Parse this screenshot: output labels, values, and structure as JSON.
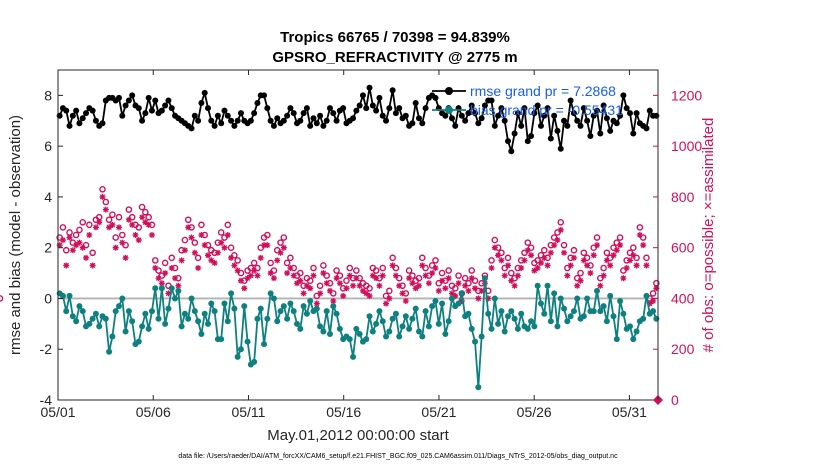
{
  "chart_data": {
    "type": "line",
    "title": "Tropics 66765 / 70398 = 94.839%",
    "subtitle": "GPSRO_REFRACTIVITY @ 2775 m",
    "xlabel": "May.01,2012 00:00:00 start",
    "ylabel": "rmse and bias (model - observation)",
    "ylabel_right": "# of obs: o=possible; ×=assimilated",
    "xlim": [
      0,
      31.5
    ],
    "ylim": [
      -4,
      9
    ],
    "ylim_right": [
      0,
      1300
    ],
    "xtick_values": [
      0,
      5,
      10,
      15,
      20,
      25,
      30
    ],
    "xtick_labels": [
      "05/01",
      "05/06",
      "05/11",
      "05/16",
      "05/21",
      "05/26",
      "05/31"
    ],
    "ytick_labels": [
      "-4",
      "-2",
      "0",
      "2",
      "4",
      "6",
      "8"
    ],
    "ytick_labels_right": [
      "0",
      "200",
      "400",
      "600",
      "800",
      "1000",
      "1200"
    ],
    "legend": [
      "rmse grand pr = 7.2868",
      "bias grand pr = -0.55431"
    ],
    "colors": {
      "rmse": "#000000",
      "bias": "#0f8080",
      "obs": "#d0105a",
      "legend_text": "#1a5ee6",
      "zero_line": "#b3b3b3"
    },
    "footnote": "data file: /Users/raeder/DAI/ATM_forcXX/CAM6_setup/f.e21.FHIST_BGC.f09_025.CAM6assim.011/Diags_NTrS_2012-05/obs_diag_output.nc",
    "series": [
      {
        "name": "rmse",
        "values": [
          7.2,
          7.5,
          7.4,
          6.8,
          7.2,
          7.4,
          6.9,
          7.1,
          7.3,
          7.5,
          7.4,
          7.0,
          6.8,
          6.9,
          7.8,
          7.9,
          7.9,
          7.8,
          7.9,
          7.2,
          7.6,
          7.8,
          8.0,
          7.6,
          7.5,
          7.0,
          7.3,
          7.9,
          7.4,
          7.8,
          7.3,
          7.4,
          7.6,
          7.8,
          7.5,
          7.2,
          7.1,
          7.0,
          6.9,
          6.8,
          6.7,
          7.2,
          7.0,
          7.7,
          8.1,
          7.5,
          7.0,
          6.8,
          7.2,
          6.9,
          7.4,
          7.2,
          7.0,
          6.8,
          7.0,
          7.3,
          7.0,
          6.9,
          7.0,
          7.3,
          7.7,
          8.0,
          8.0,
          7.5,
          7.0,
          6.8,
          7.1,
          6.9,
          7.0,
          7.2,
          7.5,
          7.3,
          6.9,
          7.0,
          7.3,
          7.5,
          6.8,
          7.1,
          6.9,
          7.2,
          6.8,
          7.0,
          7.5,
          7.3,
          7.0,
          7.4,
          7.5,
          6.9,
          7.0,
          7.1,
          7.4,
          7.6,
          8.0,
          7.5,
          8.3,
          7.6,
          7.4,
          7.9,
          7.2,
          7.0,
          7.5,
          8.2,
          7.3,
          7.5,
          7.1,
          7.2,
          6.8,
          6.9,
          7.7,
          7.1,
          6.9,
          7.5,
          7.9,
          8.0,
          7.9,
          7.5,
          7.3,
          7.2,
          7.5,
          7.1,
          6.8,
          7.5,
          7.2,
          7.0,
          7.3,
          7.6,
          7.3,
          6.9,
          7.1,
          7.6,
          7.8,
          7.8,
          6.8,
          7.2,
          7.5,
          7.0,
          6.2,
          5.8,
          6.5,
          7.3,
          6.8,
          7.5,
          6.2,
          6.4,
          7.3,
          7.6,
          6.8,
          7.2,
          7.5,
          6.3,
          7.2,
          6.6,
          5.9,
          7.0,
          6.8,
          7.8,
          7.3,
          7.0,
          6.8,
          7.5,
          7.0,
          6.4,
          7.2,
          7.4,
          6.5,
          7.6,
          7.1,
          6.6,
          7.0,
          6.9,
          7.2,
          8.0,
          7.5,
          7.3,
          6.5,
          7.3,
          6.9,
          6.8,
          6.7,
          7.4,
          7.2,
          7.2
        ]
      },
      {
        "name": "bias",
        "values": [
          0.2,
          0.1,
          -0.5,
          0.1,
          -0.7,
          -0.9,
          -0.3,
          -0.5,
          -1.1,
          -1.0,
          -0.8,
          -0.6,
          -1.1,
          -0.7,
          -0.8,
          -2.1,
          -1.5,
          -0.5,
          -0.3,
          0.0,
          -1.3,
          -0.5,
          -0.9,
          -1.8,
          -1.7,
          -1.1,
          -0.6,
          -1.2,
          -0.5,
          0.4,
          -0.8,
          0.4,
          -1.0,
          -0.4,
          0.4,
          0.0,
          0.3,
          -1.1,
          -0.6,
          -0.8,
          0.0,
          -0.5,
          -0.9,
          -1.4,
          -0.6,
          -1.0,
          -0.2,
          -0.5,
          -1.6,
          -1.6,
          -0.2,
          -0.9,
          0.2,
          -0.4,
          -2.3,
          -2.0,
          -0.3,
          -1.7,
          -2.6,
          -2.5,
          -0.8,
          -0.4,
          -1.8,
          -0.8,
          0.2,
          0.0,
          -0.9,
          -0.5,
          -0.3,
          -0.8,
          -0.2,
          -0.5,
          -1.0,
          -1.2,
          -0.3,
          -0.6,
          -0.1,
          -0.5,
          -0.4,
          -1.1,
          -1.3,
          -0.5,
          -1.4,
          -0.3,
          -0.6,
          -1.2,
          -1.6,
          -1.5,
          -1.6,
          -2.3,
          -1.2,
          -1.4,
          -1.7,
          -1.6,
          -0.7,
          -1.3,
          -1.0,
          -0.5,
          -0.9,
          -1.5,
          -1.3,
          -0.8,
          -0.6,
          -1.5,
          -1.1,
          -0.7,
          -1.2,
          -0.8,
          -0.4,
          -1.3,
          -1.5,
          -0.5,
          -1.1,
          -0.3,
          -0.1,
          -1.0,
          -0.2,
          -1.4,
          -0.9,
          0.0,
          -0.3,
          -0.2,
          0.2,
          -0.7,
          -0.6,
          -1.2,
          -1.7,
          -3.5,
          -1.5,
          0.8,
          -0.6,
          -1.2,
          0.0,
          -1.0,
          -0.5,
          -1.3,
          -0.7,
          -0.5,
          -0.8,
          -1.2,
          -0.6,
          -1.1,
          -1.2,
          -0.9,
          -1.1,
          0.5,
          -0.2,
          -0.6,
          0.5,
          -0.9,
          0.2,
          -1.1,
          0.0,
          -0.4,
          -0.9,
          -0.7,
          -0.5,
          0.0,
          -0.8,
          -0.7,
          0.0,
          -0.5,
          -0.5,
          0.3,
          -0.5,
          -0.3,
          -0.9,
          0.1,
          -0.7,
          -1.6,
          -0.1,
          -0.6,
          -1.2,
          -1.1,
          -1.6,
          -1.3,
          -0.9,
          -0.8,
          0.1,
          -0.6,
          -0.5,
          -0.8
        ]
      },
      {
        "name": "possible",
        "values": [
          640,
          680,
          590,
          660,
          620,
          650,
          670,
          700,
          610,
          690,
          580,
          710,
          720,
          830,
          780,
          710,
          730,
          640,
          720,
          650,
          610,
          750,
          720,
          690,
          680,
          760,
          740,
          720,
          690,
          550,
          510,
          490,
          540,
          450,
          560,
          520,
          480,
          590,
          630,
          710,
          680,
          620,
          560,
          690,
          650,
          610,
          590,
          580,
          620,
          660,
          640,
          690,
          600,
          570,
          550,
          500,
          470,
          510,
          520,
          540,
          520,
          600,
          640,
          650,
          540,
          510,
          590,
          620,
          640,
          540,
          560,
          520,
          490,
          500,
          450,
          480,
          470,
          520,
          410,
          450,
          530,
          490,
          460,
          420,
          510,
          490,
          440,
          470,
          520,
          480,
          510,
          480,
          460,
          450,
          440,
          520,
          510,
          480,
          520,
          410,
          430,
          560,
          520,
          480,
          450,
          420,
          510,
          490,
          470,
          480,
          560,
          520,
          490,
          530,
          550,
          460,
          500,
          470,
          510,
          450,
          440,
          490,
          420,
          480,
          460,
          510,
          470,
          430,
          460,
          490,
          430,
          550,
          630,
          600,
          580,
          520,
          560,
          500,
          480,
          520,
          550,
          580,
          620,
          600,
          540,
          550,
          570,
          590,
          560,
          610,
          640,
          660,
          700,
          610,
          520,
          560,
          590,
          480,
          500,
          580,
          560,
          530,
          600,
          640,
          480,
          520,
          580,
          560,
          600,
          620,
          640,
          510,
          550,
          580,
          600,
          560,
          680,
          640,
          560,
          400,
          420,
          460,
          400
        ]
      },
      {
        "name": "assimilated",
        "values": [
          610,
          630,
          530,
          640,
          590,
          610,
          620,
          600,
          560,
          650,
          530,
          680,
          700,
          800,
          750,
          680,
          690,
          600,
          680,
          620,
          560,
          710,
          690,
          650,
          630,
          720,
          700,
          690,
          650,
          520,
          480,
          460,
          500,
          420,
          520,
          480,
          450,
          550,
          590,
          680,
          640,
          580,
          520,
          650,
          610,
          570,
          550,
          540,
          580,
          620,
          600,
          650,
          560,
          530,
          510,
          470,
          440,
          480,
          490,
          510,
          490,
          560,
          610,
          610,
          500,
          480,
          550,
          580,
          600,
          500,
          520,
          490,
          460,
          470,
          420,
          450,
          440,
          490,
          380,
          420,
          500,
          460,
          430,
          390,
          480,
          460,
          410,
          440,
          490,
          450,
          480,
          450,
          430,
          420,
          410,
          490,
          480,
          450,
          490,
          380,
          400,
          530,
          490,
          450,
          420,
          390,
          480,
          460,
          440,
          450,
          530,
          490,
          460,
          500,
          520,
          430,
          470,
          440,
          480,
          420,
          410,
          460,
          390,
          450,
          430,
          480,
          440,
          400,
          430,
          460,
          400,
          520,
          600,
          570,
          550,
          490,
          530,
          470,
          450,
          490,
          520,
          550,
          590,
          570,
          510,
          520,
          540,
          560,
          530,
          580,
          610,
          630,
          670,
          580,
          490,
          530,
          560,
          450,
          470,
          550,
          530,
          500,
          570,
          610,
          450,
          490,
          550,
          530,
          570,
          590,
          610,
          480,
          520,
          550,
          570,
          530,
          650,
          610,
          530,
          380,
          390,
          440,
          380
        ]
      }
    ]
  }
}
